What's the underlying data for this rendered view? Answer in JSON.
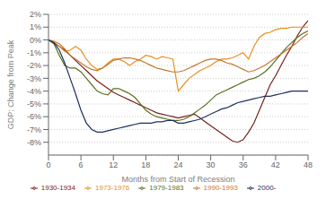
{
  "chart_data": {
    "type": "line",
    "title": "",
    "xlabel": "Months from Start of Recession",
    "ylabel": "GDP: Change from Peak",
    "x": [
      0,
      1,
      2,
      3,
      4,
      5,
      6,
      7,
      8,
      9,
      10,
      11,
      12,
      13,
      14,
      15,
      16,
      17,
      18,
      19,
      20,
      21,
      22,
      23,
      24,
      25,
      26,
      27,
      28,
      29,
      30,
      31,
      32,
      33,
      34,
      35,
      36,
      37,
      38,
      39,
      40,
      41,
      42,
      43,
      44,
      45,
      46,
      47,
      48
    ],
    "xlim": [
      0,
      48
    ],
    "xticks": [
      0,
      6,
      12,
      18,
      24,
      30,
      36,
      42,
      48
    ],
    "ylim": [
      -9,
      2
    ],
    "yticks": [
      {
        "value": -8,
        "label": "-8%"
      },
      {
        "value": -7,
        "label": "-7%"
      },
      {
        "value": -6,
        "label": "-6%"
      },
      {
        "value": -5,
        "label": "-5%"
      },
      {
        "value": -4,
        "label": "-4%"
      },
      {
        "value": -3,
        "label": "-3%"
      },
      {
        "value": -2,
        "label": "-2%"
      },
      {
        "value": -1,
        "label": "-1%"
      },
      {
        "value": 0,
        "label": "0%"
      },
      {
        "value": 1,
        "label": "1%"
      },
      {
        "value": 2,
        "label": "2%"
      }
    ],
    "grid": true,
    "legend": "bottom",
    "series": [
      {
        "name": "1930-1934",
        "color": "#7b2020",
        "values": [
          0,
          -0.2,
          -0.5,
          -0.8,
          -1.2,
          -1.6,
          -2.0,
          -2.4,
          -2.8,
          -3.2,
          -3.5,
          -3.8,
          -4.1,
          -4.3,
          -4.5,
          -4.7,
          -4.9,
          -5.1,
          -5.3,
          -5.5,
          -5.7,
          -5.8,
          -5.9,
          -6.0,
          -6.1,
          -6.0,
          -5.9,
          -5.8,
          -6.1,
          -6.4,
          -6.7,
          -7.0,
          -7.3,
          -7.6,
          -7.9,
          -8.0,
          -7.8,
          -7.2,
          -6.5,
          -5.5,
          -4.5,
          -3.5,
          -2.8,
          -2.0,
          -1.2,
          -0.5,
          0.3,
          1.0,
          1.5
        ]
      },
      {
        "name": "1973-1976",
        "color": "#e89020",
        "values": [
          0,
          -0.3,
          -0.5,
          -0.9,
          -0.8,
          -0.5,
          -0.8,
          -1.5,
          -2.0,
          -2.3,
          -2.2,
          -1.8,
          -1.5,
          -1.5,
          -1.7,
          -2.0,
          -1.7,
          -1.5,
          -1.2,
          -1.3,
          -1.5,
          -1.3,
          -1.4,
          -1.5,
          -4.0,
          -3.5,
          -3.0,
          -2.7,
          -2.4,
          -2.2,
          -2.0,
          -1.7,
          -1.5,
          -1.5,
          -1.4,
          -1.2,
          -1.0,
          -1.5,
          -0.5,
          0.2,
          0.5,
          0.6,
          0.8,
          0.9,
          0.9,
          1.0,
          1.0,
          1.0,
          1.0
        ]
      },
      {
        "name": "1979-1983",
        "color": "#5a7020",
        "values": [
          0,
          -0.3,
          -1.2,
          -2.0,
          -2.2,
          -2.2,
          -2.5,
          -3.0,
          -3.5,
          -4.0,
          -4.2,
          -4.3,
          -3.8,
          -3.8,
          -4.0,
          -4.2,
          -4.5,
          -5.0,
          -5.5,
          -5.8,
          -6.0,
          -6.1,
          -6.2,
          -6.3,
          -6.3,
          -6.2,
          -6.0,
          -5.7,
          -5.4,
          -5.1,
          -4.7,
          -4.3,
          -4.1,
          -3.9,
          -3.7,
          -3.5,
          -3.3,
          -3.1,
          -3.0,
          -2.8,
          -2.5,
          -2.1,
          -1.6,
          -1.1,
          -0.6,
          -0.2,
          0.2,
          0.5,
          0.7
        ]
      },
      {
        "name": "1990-1993",
        "color": "#c87830",
        "values": [
          0,
          -0.1,
          -0.3,
          -0.7,
          -1.2,
          -1.5,
          -1.8,
          -2.1,
          -2.3,
          -2.4,
          -2.2,
          -1.9,
          -1.6,
          -1.5,
          -1.4,
          -1.4,
          -1.5,
          -1.6,
          -1.8,
          -2.0,
          -2.2,
          -2.3,
          -2.4,
          -2.5,
          -2.5,
          -2.4,
          -2.2,
          -2.0,
          -1.8,
          -1.6,
          -1.5,
          -1.5,
          -1.6,
          -1.8,
          -1.9,
          -2.1,
          -2.3,
          -2.5,
          -2.4,
          -2.2,
          -2.0,
          -1.7,
          -1.4,
          -1.1,
          -0.8,
          -0.5,
          -0.2,
          0.2,
          0.5
        ]
      },
      {
        "name": "2000-",
        "color": "#1e3060",
        "values": [
          0,
          -0.2,
          -0.8,
          -1.8,
          -3.0,
          -4.2,
          -5.5,
          -6.5,
          -7.0,
          -7.2,
          -7.2,
          -7.1,
          -7.0,
          -6.9,
          -6.8,
          -6.7,
          -6.6,
          -6.5,
          -6.5,
          -6.5,
          -6.4,
          -6.4,
          -6.3,
          -6.3,
          -6.5,
          -6.5,
          -6.4,
          -6.3,
          -6.2,
          -6.0,
          -5.8,
          -5.6,
          -5.4,
          -5.3,
          -5.1,
          -4.9,
          -4.8,
          -4.7,
          -4.6,
          -4.5,
          -4.4,
          -4.4,
          -4.3,
          -4.2,
          -4.1,
          -4.0,
          -4.0,
          -4.0,
          -4.0
        ]
      }
    ]
  }
}
